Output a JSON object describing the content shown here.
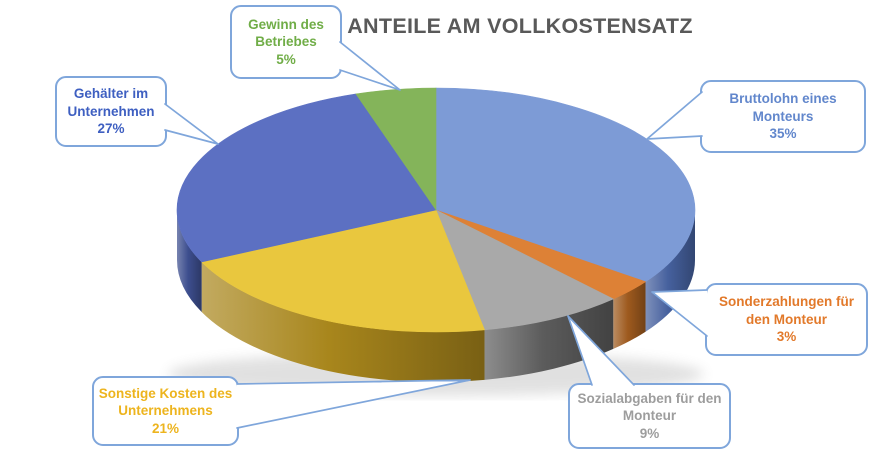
{
  "title": "ANTEILE AM VOLLKOSTENSATZ",
  "chart_data": {
    "type": "pie",
    "title": "ANTEILE AM VOLLKOSTENSATZ",
    "effect": "3d",
    "direction": "clockwise",
    "start_angle_deg": 0,
    "unit": "%",
    "labels": [
      "Bruttolohn eines Monteurs",
      "Sonderzahlungen für den Monteur",
      "Sozialabgaben für den Monteur",
      "Sonstige Kosten des Unternehmens",
      "Gehälter im Unternehmen",
      "Gewinn des Betriebes"
    ],
    "values": [
      35,
      3,
      9,
      21,
      27,
      5
    ],
    "colors": [
      "#7D9BD6",
      "#DD8136",
      "#A9A9A9",
      "#E9C73E",
      "#5C70C2",
      "#84B45A"
    ],
    "side_colors": [
      "#46619E",
      "#9E5A1E",
      "#5C5C5C",
      "#A8861C",
      "#3D4E8E",
      "#5E8539"
    ],
    "legend": "none",
    "data_labels": "callout boxes with category name and percent"
  },
  "callouts": [
    {
      "id": "bruttolohn",
      "text": "Bruttolohn eines\nMonteurs\n35%",
      "color": "#6287CC"
    },
    {
      "id": "sonderzahlung",
      "text": "Sonderzahlungen für\nden Monteur\n3%",
      "color": "#E2792A"
    },
    {
      "id": "sozialabgaben",
      "text": "Sozialabgaben für den\nMonteur\n9%",
      "color": "#9D9D9D"
    },
    {
      "id": "sonstige",
      "text": "Sonstige Kosten des\nUnternehmens\n21%",
      "color": "#EDB41E"
    },
    {
      "id": "gehaelter",
      "text": "Gehälter im\nUnternehmen\n27%",
      "color": "#3E5FC1"
    },
    {
      "id": "gewinn",
      "text": "Gewinn des\nBetriebes\n5%",
      "color": "#70AD47"
    }
  ],
  "ui": {
    "callout_border": "#7FA6DB",
    "title_color": "#595959",
    "background": "#FFFFFF"
  }
}
